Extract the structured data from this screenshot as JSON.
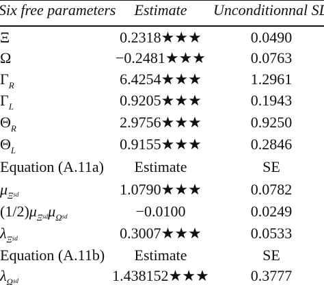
{
  "header": {
    "col1": "Six free parameters",
    "col2": "Estimate",
    "col3": "Unconditionnal SD"
  },
  "rows": [
    {
      "param": "Ξ",
      "estimate": "0.2318★★★",
      "sd": "0.0490"
    },
    {
      "param": "Ω",
      "estimate": "−0.2481★★★",
      "sd": "0.0763"
    },
    {
      "param": "Γ",
      "param_sub": "R",
      "estimate": "6.4254★★★",
      "sd": "1.2961"
    },
    {
      "param": "Γ",
      "param_sub": "L",
      "estimate": "0.9205★★★",
      "sd": "0.1943"
    },
    {
      "param": "Θ",
      "param_sub": "R",
      "estimate": "2.9756★★★",
      "sd": "0.9250"
    },
    {
      "param": "Θ",
      "param_sub": "L",
      "estimate": "0.9155★★★",
      "sd": "0.2846"
    },
    {
      "param": "Equation (A.11a)",
      "estimate": "Estimate",
      "sd": "SE"
    },
    {
      "param": "μ",
      "param_sub": "Ξ",
      "param_subsub": "sd",
      "estimate": "1.0790★★★",
      "sd": "0.0782"
    },
    {
      "param_prefix": "(1/2)",
      "param": "μ",
      "param_sub": "Ξ",
      "param_subsub": "sd",
      "param2": "μ",
      "param2_sub": "Ω",
      "param2_subsub": "sd",
      "estimate": "−0.0100",
      "sd": "0.0249"
    },
    {
      "param": "λ",
      "param_sub": "Ξ",
      "param_subsub": "sd",
      "estimate": "0.3007★★★",
      "sd": "0.0533"
    },
    {
      "param": "Equation (A.11b)",
      "estimate": "Estimate",
      "sd": "SE"
    },
    {
      "param": "λ",
      "param_sub": "Ω",
      "param_subsub": "sd",
      "estimate": "1.438152★★★",
      "sd": "0.3777"
    }
  ]
}
